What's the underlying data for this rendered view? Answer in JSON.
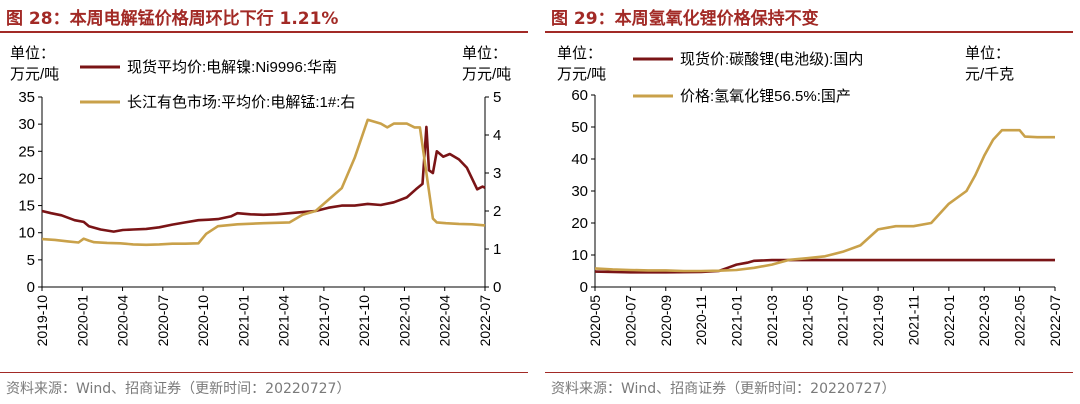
{
  "chart_data": [
    {
      "type": "line",
      "title": "图 28：本周电解锰价格周环比下行 1.21%",
      "source": "资料来源：Wind、招商证券（更新时间：20220727）",
      "left_unit": "单位：万元/吨",
      "right_unit": "单位：万元/吨",
      "x_ticks": [
        "2019-10",
        "2020-01",
        "2020-04",
        "2020-07",
        "2020-10",
        "2021-01",
        "2021-04",
        "2021-07",
        "2021-10",
        "2022-01",
        "2022-04",
        "2022-07"
      ],
      "x_range": [
        0,
        34
      ],
      "y_left": {
        "min": 0,
        "max": 35,
        "ticks": [
          0,
          5,
          10,
          15,
          20,
          25,
          30,
          35
        ]
      },
      "y_right": {
        "min": 0,
        "max": 5,
        "ticks": [
          0,
          1,
          2,
          3,
          4,
          5
        ]
      },
      "series": [
        {
          "name": "现货平均价:电解镍:Ni9996:华南",
          "axis": "left",
          "color": "#7a1416",
          "points": [
            [
              0,
              14.0
            ],
            [
              0.7,
              13.6
            ],
            [
              1.5,
              13.2
            ],
            [
              2.5,
              12.3
            ],
            [
              3.2,
              12.0
            ],
            [
              3.6,
              11.2
            ],
            [
              4.5,
              10.6
            ],
            [
              5.5,
              10.2
            ],
            [
              6.2,
              10.5
            ],
            [
              7,
              10.6
            ],
            [
              8,
              10.7
            ],
            [
              9,
              11.0
            ],
            [
              10,
              11.5
            ],
            [
              11,
              11.9
            ],
            [
              12,
              12.3
            ],
            [
              12.8,
              12.4
            ],
            [
              13.5,
              12.5
            ],
            [
              14.5,
              13.0
            ],
            [
              15,
              13.6
            ],
            [
              16,
              13.4
            ],
            [
              17,
              13.3
            ],
            [
              18,
              13.4
            ],
            [
              19,
              13.6
            ],
            [
              20,
              13.8
            ],
            [
              21,
              14.0
            ],
            [
              22,
              14.6
            ],
            [
              23,
              15.0
            ],
            [
              24,
              15.0
            ],
            [
              25,
              15.3
            ],
            [
              26,
              15.1
            ],
            [
              27,
              15.6
            ],
            [
              28,
              16.5
            ],
            [
              28.7,
              18.0
            ],
            [
              29.2,
              19.0
            ],
            [
              29.5,
              29.5
            ],
            [
              29.7,
              21.5
            ],
            [
              30,
              21.0
            ],
            [
              30.3,
              25.0
            ],
            [
              30.8,
              24.0
            ],
            [
              31.3,
              24.5
            ],
            [
              32,
              23.5
            ],
            [
              32.6,
              22.0
            ],
            [
              33,
              20.0
            ],
            [
              33.4,
              18.0
            ],
            [
              33.8,
              18.5
            ],
            [
              34,
              18.3
            ]
          ]
        },
        {
          "name": "长江有色市场:平均价:电解锰:1#:右",
          "axis": "right",
          "color": "#c9a14a",
          "points": [
            [
              0,
              1.26
            ],
            [
              1,
              1.24
            ],
            [
              2,
              1.2
            ],
            [
              2.8,
              1.17
            ],
            [
              3.2,
              1.27
            ],
            [
              3.6,
              1.22
            ],
            [
              4,
              1.18
            ],
            [
              5,
              1.16
            ],
            [
              6,
              1.15
            ],
            [
              7,
              1.12
            ],
            [
              8,
              1.11
            ],
            [
              9,
              1.12
            ],
            [
              10,
              1.14
            ],
            [
              11,
              1.14
            ],
            [
              12,
              1.15
            ],
            [
              12.6,
              1.4
            ],
            [
              13.5,
              1.6
            ],
            [
              15,
              1.65
            ],
            [
              17,
              1.68
            ],
            [
              19,
              1.7
            ],
            [
              20,
              1.9
            ],
            [
              21,
              2.0
            ],
            [
              22,
              2.3
            ],
            [
              23,
              2.6
            ],
            [
              24,
              3.4
            ],
            [
              25,
              4.4
            ],
            [
              26,
              4.3
            ],
            [
              26.5,
              4.2
            ],
            [
              27,
              4.3
            ],
            [
              28,
              4.3
            ],
            [
              28.6,
              4.2
            ],
            [
              29,
              4.2
            ],
            [
              29.5,
              3.0
            ],
            [
              30,
              1.8
            ],
            [
              30.3,
              1.7
            ],
            [
              31,
              1.68
            ],
            [
              32,
              1.66
            ],
            [
              33,
              1.65
            ],
            [
              34,
              1.62
            ]
          ]
        }
      ]
    },
    {
      "type": "line",
      "title": "图 29：本周氢氧化锂价格保持不变",
      "source": "资料来源：Wind、招商证券（更新时间：20220727）",
      "left_unit": "单位：万元/吨",
      "right_unit": "单位：元/千克",
      "x_ticks": [
        "2020-05",
        "2020-07",
        "2020-09",
        "2020-11",
        "2021-01",
        "2021-03",
        "2021-05",
        "2021-07",
        "2021-09",
        "2021-11",
        "2022-01",
        "2022-03",
        "2022-05",
        "2022-07"
      ],
      "x_range": [
        0,
        26
      ],
      "y_left": {
        "min": 0,
        "max": 60,
        "ticks": [
          0,
          10,
          20,
          30,
          40,
          50,
          60
        ]
      },
      "series": [
        {
          "name": "现货价:碳酸锂(电池级):国内",
          "axis": "left",
          "color": "#7a1416",
          "points": [
            [
              0,
              4.8
            ],
            [
              2,
              4.6
            ],
            [
              4,
              4.6
            ],
            [
              6,
              4.7
            ],
            [
              7,
              5.0
            ],
            [
              7.5,
              6.0
            ],
            [
              8,
              7.0
            ],
            [
              8.6,
              7.6
            ],
            [
              9,
              8.2
            ],
            [
              10,
              8.4
            ],
            [
              11,
              8.4
            ],
            [
              12,
              8.4
            ],
            [
              14,
              8.4
            ],
            [
              16,
              8.4
            ],
            [
              18,
              8.4
            ],
            [
              20,
              8.4
            ],
            [
              22,
              8.4
            ],
            [
              24,
              8.4
            ],
            [
              26,
              8.4
            ]
          ]
        },
        {
          "name": "价格:氢氧化锂56.5%:国产",
          "axis": "left",
          "color": "#c9a14a",
          "points": [
            [
              0,
              5.8
            ],
            [
              1,
              5.5
            ],
            [
              2,
              5.3
            ],
            [
              3,
              5.2
            ],
            [
              4,
              5.2
            ],
            [
              5,
              5.0
            ],
            [
              6,
              5.0
            ],
            [
              7,
              5.1
            ],
            [
              8,
              5.3
            ],
            [
              9,
              6.0
            ],
            [
              10,
              7.0
            ],
            [
              11,
              8.5
            ],
            [
              12,
              9.0
            ],
            [
              13,
              9.6
            ],
            [
              14,
              11.0
            ],
            [
              15,
              13.0
            ],
            [
              16,
              18.0
            ],
            [
              17,
              19.0
            ],
            [
              18,
              19.0
            ],
            [
              19,
              20.0
            ],
            [
              20,
              26.0
            ],
            [
              21,
              30.0
            ],
            [
              21.5,
              35.0
            ],
            [
              22,
              41.0
            ],
            [
              22.5,
              46.0
            ],
            [
              23,
              49.0
            ],
            [
              24,
              49.0
            ],
            [
              24.3,
              47.0
            ],
            [
              25,
              46.8
            ],
            [
              26,
              46.8
            ]
          ]
        }
      ]
    }
  ]
}
